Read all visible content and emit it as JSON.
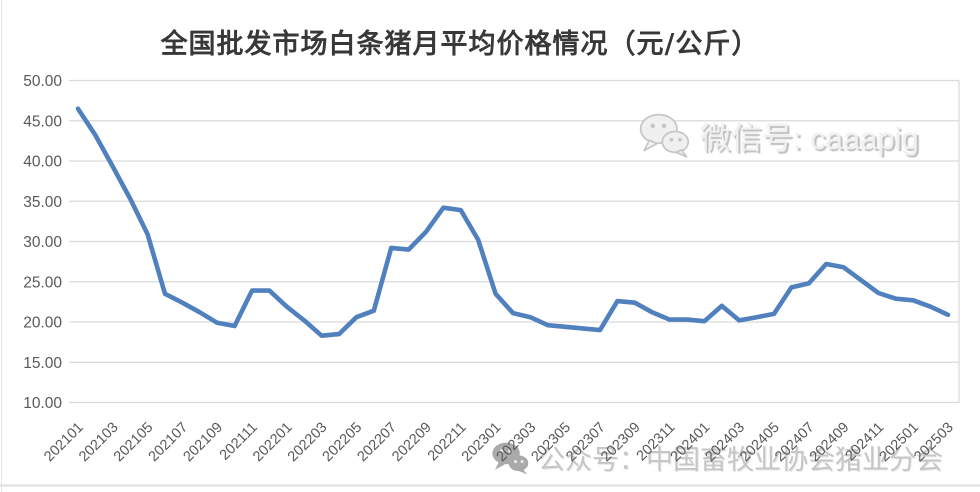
{
  "title": "全国批发市场白条猪月平均价格情况（元/公斤）",
  "watermark_top": {
    "icon": "wechat-icon",
    "text": "微信号: caaapig"
  },
  "watermark_bottom": {
    "icon": "wechat-icon",
    "text": "公众号：中国畜牧业协会猪业分会"
  },
  "colors": {
    "line": "#5081BE",
    "grid": "#D9D9D9",
    "plot_border": "#D9D9D9",
    "tick_text": "#595959",
    "title_text": "#383838"
  },
  "chart_data": {
    "type": "line",
    "title": "全国批发市场白条猪月平均价格情况（元/公斤）",
    "xlabel": "",
    "ylabel": "",
    "ylim": [
      10,
      50
    ],
    "ytick_step": 5,
    "grid": "horizontal",
    "legend": "none",
    "x": [
      "202101",
      "202102",
      "202103",
      "202104",
      "202105",
      "202106",
      "202107",
      "202108",
      "202109",
      "202110",
      "202111",
      "202112",
      "202201",
      "202202",
      "202203",
      "202204",
      "202205",
      "202206",
      "202207",
      "202208",
      "202209",
      "202210",
      "202211",
      "202212",
      "202301",
      "202302",
      "202303",
      "202304",
      "202305",
      "202306",
      "202307",
      "202308",
      "202309",
      "202310",
      "202311",
      "202312",
      "202401",
      "202402",
      "202403",
      "202404",
      "202405",
      "202406",
      "202407",
      "202408",
      "202409",
      "202410",
      "202411",
      "202412",
      "202501",
      "202502",
      "202503"
    ],
    "values": [
      46.5,
      43.2,
      39.3,
      35.3,
      30.9,
      23.5,
      22.4,
      21.2,
      19.9,
      19.5,
      23.9,
      23.9,
      21.9,
      20.2,
      18.3,
      18.5,
      20.6,
      21.4,
      29.2,
      29.0,
      31.2,
      34.2,
      33.9,
      30.2,
      23.5,
      21.1,
      20.6,
      19.6,
      19.4,
      19.2,
      19.0,
      22.6,
      22.4,
      21.2,
      20.3,
      20.3,
      20.1,
      22.0,
      20.2,
      20.6,
      21.0,
      24.3,
      24.8,
      27.2,
      26.8,
      25.2,
      23.6,
      22.9,
      22.7,
      21.9,
      20.9
    ],
    "ytick_labels": [
      "50.00",
      "45.00",
      "40.00",
      "35.00",
      "30.00",
      "25.00",
      "20.00",
      "15.00",
      "10.00"
    ],
    "xtick_labels": [
      "202101",
      "202103",
      "202105",
      "202107",
      "202109",
      "202111",
      "202201",
      "202203",
      "202205",
      "202207",
      "202209",
      "202211",
      "202301",
      "202303",
      "202305",
      "202307",
      "202309",
      "202311",
      "202401",
      "202403",
      "202405",
      "202407",
      "202409",
      "202411",
      "202501",
      "202503"
    ]
  }
}
